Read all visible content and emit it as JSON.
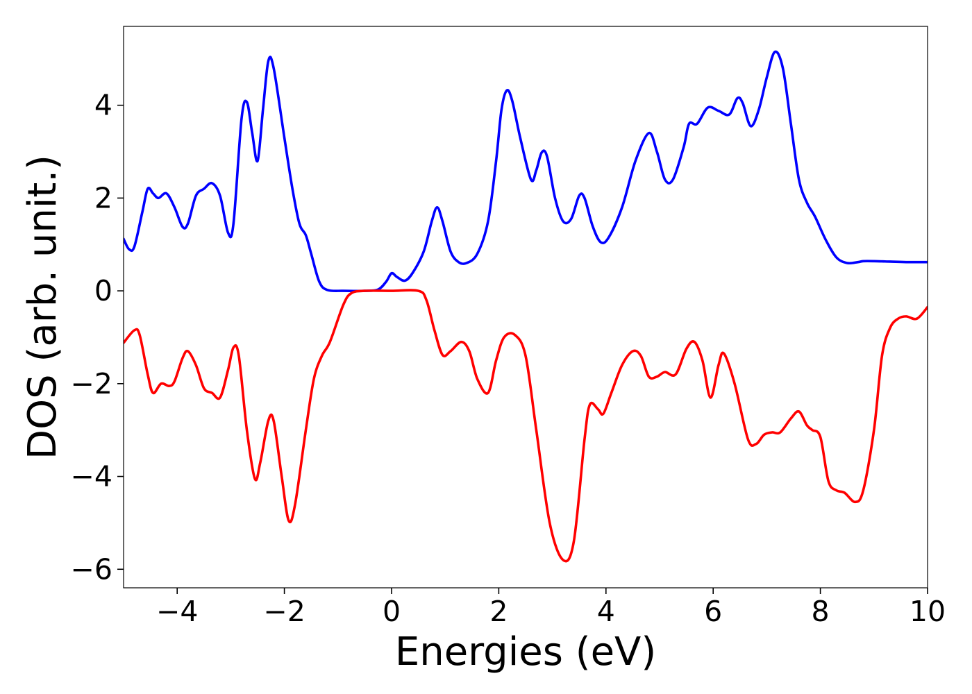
{
  "chart_data": {
    "type": "line",
    "xlabel": "Energies (eV)",
    "ylabel": "DOS (arb. unit.)",
    "xlim": [
      -5,
      10
    ],
    "ylim": [
      -6.4,
      5.7
    ],
    "xticks": [
      -4,
      -2,
      0,
      2,
      4,
      6,
      8,
      10
    ],
    "xtick_labels": [
      "−4",
      "−2",
      "0",
      "2",
      "4",
      "6",
      "8",
      "10"
    ],
    "yticks": [
      -6,
      -4,
      -2,
      0,
      2,
      4
    ],
    "ytick_labels": [
      "−6",
      "−4",
      "−2",
      "0",
      "2",
      "4"
    ],
    "grid": false,
    "series": [
      {
        "color": "#0000ff",
        "points": [
          [
            -5.0,
            1.12
          ],
          [
            -4.9,
            0.9
          ],
          [
            -4.8,
            0.95
          ],
          [
            -4.65,
            1.7
          ],
          [
            -4.55,
            2.2
          ],
          [
            -4.45,
            2.1
          ],
          [
            -4.35,
            2.0
          ],
          [
            -4.2,
            2.1
          ],
          [
            -4.05,
            1.8
          ],
          [
            -3.9,
            1.38
          ],
          [
            -3.8,
            1.45
          ],
          [
            -3.65,
            2.05
          ],
          [
            -3.5,
            2.2
          ],
          [
            -3.35,
            2.32
          ],
          [
            -3.2,
            2.05
          ],
          [
            -3.05,
            1.25
          ],
          [
            -2.95,
            1.45
          ],
          [
            -2.8,
            3.7
          ],
          [
            -2.7,
            4.07
          ],
          [
            -2.6,
            3.4
          ],
          [
            -2.5,
            2.8
          ],
          [
            -2.4,
            3.9
          ],
          [
            -2.3,
            4.95
          ],
          [
            -2.2,
            4.8
          ],
          [
            -2.0,
            3.3
          ],
          [
            -1.85,
            2.2
          ],
          [
            -1.72,
            1.45
          ],
          [
            -1.6,
            1.2
          ],
          [
            -1.5,
            0.8
          ],
          [
            -1.35,
            0.2
          ],
          [
            -1.2,
            0.02
          ],
          [
            -0.9,
            0.0
          ],
          [
            -0.5,
            0.0
          ],
          [
            -0.25,
            0.03
          ],
          [
            -0.1,
            0.2
          ],
          [
            0.0,
            0.38
          ],
          [
            0.1,
            0.3
          ],
          [
            0.25,
            0.22
          ],
          [
            0.4,
            0.4
          ],
          [
            0.6,
            0.85
          ],
          [
            0.75,
            1.5
          ],
          [
            0.85,
            1.8
          ],
          [
            0.95,
            1.5
          ],
          [
            1.1,
            0.85
          ],
          [
            1.25,
            0.62
          ],
          [
            1.4,
            0.6
          ],
          [
            1.6,
            0.8
          ],
          [
            1.8,
            1.5
          ],
          [
            1.95,
            2.8
          ],
          [
            2.05,
            3.9
          ],
          [
            2.15,
            4.32
          ],
          [
            2.25,
            4.1
          ],
          [
            2.4,
            3.3
          ],
          [
            2.6,
            2.4
          ],
          [
            2.7,
            2.6
          ],
          [
            2.8,
            2.98
          ],
          [
            2.9,
            2.9
          ],
          [
            3.05,
            2.0
          ],
          [
            3.2,
            1.5
          ],
          [
            3.35,
            1.55
          ],
          [
            3.5,
            2.05
          ],
          [
            3.6,
            2.0
          ],
          [
            3.75,
            1.4
          ],
          [
            3.9,
            1.05
          ],
          [
            4.05,
            1.15
          ],
          [
            4.3,
            1.8
          ],
          [
            4.55,
            2.8
          ],
          [
            4.8,
            3.4
          ],
          [
            4.95,
            3.0
          ],
          [
            5.1,
            2.4
          ],
          [
            5.25,
            2.4
          ],
          [
            5.45,
            3.1
          ],
          [
            5.55,
            3.6
          ],
          [
            5.7,
            3.6
          ],
          [
            5.9,
            3.95
          ],
          [
            6.1,
            3.88
          ],
          [
            6.3,
            3.8
          ],
          [
            6.45,
            4.15
          ],
          [
            6.55,
            4.05
          ],
          [
            6.7,
            3.55
          ],
          [
            6.85,
            3.9
          ],
          [
            7.0,
            4.6
          ],
          [
            7.15,
            5.15
          ],
          [
            7.3,
            4.8
          ],
          [
            7.45,
            3.6
          ],
          [
            7.6,
            2.4
          ],
          [
            7.75,
            1.9
          ],
          [
            7.9,
            1.6
          ],
          [
            8.1,
            1.1
          ],
          [
            8.3,
            0.72
          ],
          [
            8.5,
            0.6
          ],
          [
            8.7,
            0.62
          ],
          [
            8.8,
            0.64
          ],
          [
            9.0,
            0.64
          ],
          [
            9.3,
            0.63
          ],
          [
            9.6,
            0.62
          ],
          [
            10.0,
            0.62
          ]
        ]
      },
      {
        "color": "#ff0000",
        "points": [
          [
            -5.0,
            -1.12
          ],
          [
            -4.8,
            -0.85
          ],
          [
            -4.7,
            -0.95
          ],
          [
            -4.55,
            -1.8
          ],
          [
            -4.45,
            -2.2
          ],
          [
            -4.3,
            -2.0
          ],
          [
            -4.15,
            -2.05
          ],
          [
            -4.05,
            -1.95
          ],
          [
            -3.9,
            -1.45
          ],
          [
            -3.8,
            -1.3
          ],
          [
            -3.65,
            -1.6
          ],
          [
            -3.5,
            -2.1
          ],
          [
            -3.35,
            -2.2
          ],
          [
            -3.2,
            -2.3
          ],
          [
            -3.05,
            -1.7
          ],
          [
            -2.95,
            -1.22
          ],
          [
            -2.85,
            -1.4
          ],
          [
            -2.7,
            -3.0
          ],
          [
            -2.55,
            -4.05
          ],
          [
            -2.45,
            -3.7
          ],
          [
            -2.3,
            -2.8
          ],
          [
            -2.2,
            -2.8
          ],
          [
            -2.05,
            -4.0
          ],
          [
            -1.92,
            -4.95
          ],
          [
            -1.8,
            -4.6
          ],
          [
            -1.6,
            -3.0
          ],
          [
            -1.45,
            -1.9
          ],
          [
            -1.3,
            -1.4
          ],
          [
            -1.15,
            -1.1
          ],
          [
            -0.9,
            -0.3
          ],
          [
            -0.75,
            -0.05
          ],
          [
            -0.5,
            0.0
          ],
          [
            0.0,
            0.0
          ],
          [
            0.5,
            0.0
          ],
          [
            0.65,
            -0.2
          ],
          [
            0.8,
            -0.85
          ],
          [
            0.95,
            -1.38
          ],
          [
            1.1,
            -1.3
          ],
          [
            1.3,
            -1.1
          ],
          [
            1.45,
            -1.3
          ],
          [
            1.6,
            -1.9
          ],
          [
            1.8,
            -2.2
          ],
          [
            1.95,
            -1.5
          ],
          [
            2.1,
            -1.0
          ],
          [
            2.3,
            -0.95
          ],
          [
            2.5,
            -1.4
          ],
          [
            2.7,
            -3.0
          ],
          [
            2.95,
            -5.0
          ],
          [
            3.2,
            -5.8
          ],
          [
            3.4,
            -5.4
          ],
          [
            3.6,
            -3.2
          ],
          [
            3.7,
            -2.45
          ],
          [
            3.85,
            -2.55
          ],
          [
            3.95,
            -2.65
          ],
          [
            4.1,
            -2.2
          ],
          [
            4.3,
            -1.6
          ],
          [
            4.5,
            -1.3
          ],
          [
            4.65,
            -1.4
          ],
          [
            4.8,
            -1.85
          ],
          [
            4.95,
            -1.85
          ],
          [
            5.1,
            -1.75
          ],
          [
            5.3,
            -1.8
          ],
          [
            5.5,
            -1.25
          ],
          [
            5.65,
            -1.1
          ],
          [
            5.8,
            -1.5
          ],
          [
            5.95,
            -2.3
          ],
          [
            6.1,
            -1.6
          ],
          [
            6.2,
            -1.35
          ],
          [
            6.4,
            -2.0
          ],
          [
            6.65,
            -3.2
          ],
          [
            6.8,
            -3.3
          ],
          [
            6.95,
            -3.1
          ],
          [
            7.1,
            -3.05
          ],
          [
            7.25,
            -3.05
          ],
          [
            7.45,
            -2.75
          ],
          [
            7.6,
            -2.6
          ],
          [
            7.75,
            -2.9
          ],
          [
            7.85,
            -3.0
          ],
          [
            8.0,
            -3.15
          ],
          [
            8.15,
            -4.1
          ],
          [
            8.3,
            -4.3
          ],
          [
            8.45,
            -4.35
          ],
          [
            8.65,
            -4.55
          ],
          [
            8.8,
            -4.3
          ],
          [
            9.0,
            -3.0
          ],
          [
            9.15,
            -1.4
          ],
          [
            9.3,
            -0.8
          ],
          [
            9.45,
            -0.6
          ],
          [
            9.6,
            -0.55
          ],
          [
            9.8,
            -0.6
          ],
          [
            10.0,
            -0.35
          ]
        ]
      }
    ]
  }
}
